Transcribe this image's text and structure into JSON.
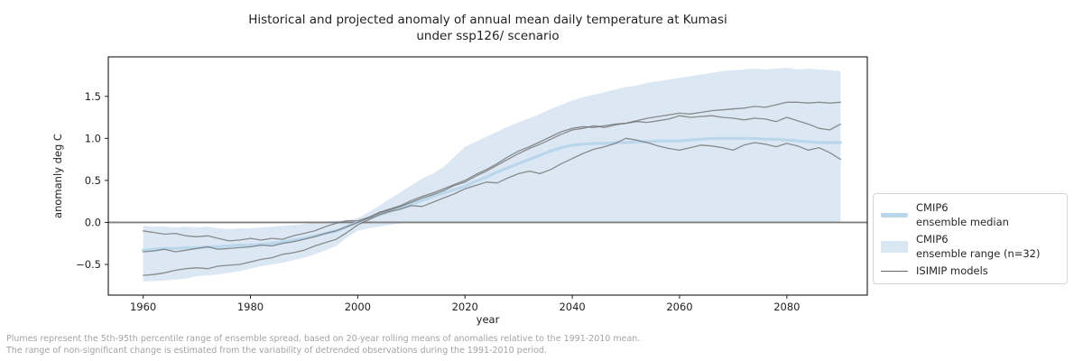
{
  "page": {
    "background": "#ffffff"
  },
  "chart": {
    "title_line1": "Historical and projected anomaly of annual mean daily temperature at Kumasi",
    "title_line2": "under ssp126/ scenario",
    "x_label": "year",
    "y_label": "anomanly deg C",
    "footnote_line1": "Plumes represent the 5th-95th percentile range of ensemble spread, based on 20-year rolling means of anomalies relative to the 1991-2010 mean.",
    "footnote_line2": "The range of non-significant change is estimated from the variability of detrended observations during the 1991-2010 period.",
    "legend": {
      "items": [
        {
          "swatch": "median-line-swatch",
          "line1": "CMIP6",
          "line2": "ensemble median"
        },
        {
          "swatch": "range-fill-swatch",
          "line1": "CMIP6",
          "line2": "ensemble range (n=32)"
        },
        {
          "swatch": "model-line-swatch",
          "line1": "ISIMIP models",
          "line2": ""
        }
      ]
    },
    "colors": {
      "band_fill": "#d9e7f3",
      "median_line": "#b8d5ea",
      "model_line": "#666666",
      "zero_line": "#7f7f7f",
      "frame": "#000000",
      "tick_text": "#1f1f1f",
      "footnote_text": "#a3a3a3",
      "legend_border": "#d4d4d4"
    }
  },
  "chart_data": {
    "type": "line",
    "title": "Historical and projected anomaly of annual mean daily temperature at Kumasi under ssp126/ scenario",
    "xlabel": "year",
    "ylabel": "anomanly deg C",
    "xlim": [
      1953.5,
      2095
    ],
    "ylim": [
      -0.865,
      1.97
    ],
    "x_ticks": [
      1960,
      1980,
      2000,
      2020,
      2040,
      2060,
      2080
    ],
    "y_ticks": [
      1.5,
      1.0,
      0.5,
      0.0,
      -0.5
    ],
    "y_tick_labels": [
      "1.5",
      "1.0",
      "0.5",
      "0.0",
      "−0.5"
    ],
    "grid": false,
    "legend_position": "right-outside",
    "years": [
      1960,
      1962,
      1964,
      1966,
      1968,
      1970,
      1972,
      1974,
      1976,
      1978,
      1980,
      1982,
      1984,
      1986,
      1988,
      1990,
      1992,
      1994,
      1996,
      1998,
      2000,
      2002,
      2004,
      2006,
      2008,
      2010,
      2012,
      2014,
      2016,
      2018,
      2020,
      2022,
      2024,
      2026,
      2028,
      2030,
      2032,
      2034,
      2036,
      2038,
      2040,
      2042,
      2044,
      2046,
      2048,
      2050,
      2052,
      2054,
      2056,
      2058,
      2060,
      2062,
      2064,
      2066,
      2068,
      2070,
      2072,
      2074,
      2076,
      2078,
      2080,
      2082,
      2084,
      2086,
      2088,
      2090
    ],
    "band": {
      "name": "CMIP6 ensemble range (n=32)",
      "color": "#d9e7f3",
      "upper": [
        -0.04,
        -0.05,
        -0.05,
        -0.06,
        -0.05,
        -0.06,
        -0.05,
        -0.07,
        -0.08,
        -0.07,
        -0.07,
        -0.06,
        -0.05,
        -0.04,
        -0.03,
        -0.02,
        0.0,
        0.01,
        0.02,
        0.03,
        0.05,
        0.12,
        0.2,
        0.28,
        0.36,
        0.44,
        0.52,
        0.58,
        0.66,
        0.78,
        0.9,
        0.96,
        1.02,
        1.08,
        1.14,
        1.19,
        1.24,
        1.29,
        1.35,
        1.4,
        1.45,
        1.49,
        1.52,
        1.55,
        1.58,
        1.61,
        1.63,
        1.66,
        1.68,
        1.7,
        1.72,
        1.74,
        1.76,
        1.78,
        1.8,
        1.81,
        1.82,
        1.83,
        1.82,
        1.83,
        1.84,
        1.82,
        1.83,
        1.82,
        1.81,
        1.8
      ],
      "lower": [
        -0.7,
        -0.7,
        -0.69,
        -0.68,
        -0.67,
        -0.64,
        -0.63,
        -0.62,
        -0.6,
        -0.58,
        -0.55,
        -0.52,
        -0.5,
        -0.48,
        -0.45,
        -0.42,
        -0.38,
        -0.33,
        -0.28,
        -0.18,
        -0.1,
        -0.07,
        -0.05,
        -0.03,
        -0.01,
        0.0,
        0.0,
        0.0,
        0.0,
        0.0,
        0.0,
        0.0,
        0.0,
        0.0,
        0.0,
        0.0,
        0.0,
        0.0,
        0.0,
        0.0,
        0.0,
        0.0,
        0.0,
        0.0,
        0.0,
        0.0,
        0.0,
        0.0,
        0.0,
        0.0,
        0.0,
        0.0,
        0.0,
        0.0,
        0.0,
        0.0,
        0.0,
        0.0,
        0.0,
        0.0,
        0.0,
        0.0,
        0.0,
        0.0,
        0.0,
        0.0
      ]
    },
    "series": [
      {
        "name": "CMIP6 ensemble median",
        "style": "thick-lightblue",
        "color": "#b8d5ea",
        "width": 3.2,
        "values": [
          -0.33,
          -0.32,
          -0.31,
          -0.31,
          -0.3,
          -0.3,
          -0.29,
          -0.29,
          -0.28,
          -0.27,
          -0.27,
          -0.26,
          -0.25,
          -0.23,
          -0.21,
          -0.19,
          -0.16,
          -0.13,
          -0.1,
          -0.05,
          0.0,
          0.05,
          0.09,
          0.13,
          0.17,
          0.22,
          0.26,
          0.31,
          0.35,
          0.39,
          0.43,
          0.49,
          0.54,
          0.6,
          0.65,
          0.7,
          0.75,
          0.8,
          0.85,
          0.89,
          0.92,
          0.93,
          0.94,
          0.94,
          0.95,
          0.95,
          0.96,
          0.96,
          0.97,
          0.97,
          0.97,
          0.98,
          0.99,
          1.0,
          1.0,
          1.0,
          1.0,
          1.0,
          0.99,
          0.99,
          0.98,
          0.97,
          0.96,
          0.95,
          0.95,
          0.95
        ]
      },
      {
        "name": "ISIMIP model 1",
        "style": "thin-gray",
        "color": "#666666",
        "width": 1.3,
        "values": [
          -0.1,
          -0.12,
          -0.14,
          -0.13,
          -0.16,
          -0.17,
          -0.16,
          -0.19,
          -0.22,
          -0.21,
          -0.19,
          -0.21,
          -0.19,
          -0.2,
          -0.16,
          -0.13,
          -0.1,
          -0.05,
          -0.01,
          0.02,
          0.02,
          0.06,
          0.12,
          0.16,
          0.2,
          0.26,
          0.31,
          0.35,
          0.4,
          0.45,
          0.5,
          0.57,
          0.63,
          0.7,
          0.78,
          0.85,
          0.9,
          0.96,
          1.02,
          1.08,
          1.12,
          1.14,
          1.13,
          1.15,
          1.17,
          1.18,
          1.21,
          1.24,
          1.26,
          1.28,
          1.3,
          1.29,
          1.31,
          1.33,
          1.34,
          1.35,
          1.36,
          1.38,
          1.37,
          1.4,
          1.43,
          1.43,
          1.42,
          1.43,
          1.42,
          1.43
        ]
      },
      {
        "name": "ISIMIP model 2",
        "style": "thin-gray",
        "color": "#666666",
        "width": 1.3,
        "values": [
          -0.35,
          -0.34,
          -0.32,
          -0.35,
          -0.33,
          -0.31,
          -0.29,
          -0.32,
          -0.31,
          -0.3,
          -0.29,
          -0.27,
          -0.28,
          -0.25,
          -0.23,
          -0.2,
          -0.17,
          -0.13,
          -0.1,
          -0.05,
          0.0,
          0.05,
          0.11,
          0.15,
          0.19,
          0.24,
          0.29,
          0.33,
          0.38,
          0.44,
          0.48,
          0.55,
          0.61,
          0.68,
          0.75,
          0.82,
          0.88,
          0.93,
          0.99,
          1.05,
          1.1,
          1.12,
          1.15,
          1.13,
          1.16,
          1.18,
          1.2,
          1.19,
          1.21,
          1.23,
          1.27,
          1.25,
          1.26,
          1.27,
          1.25,
          1.24,
          1.22,
          1.24,
          1.23,
          1.2,
          1.25,
          1.21,
          1.17,
          1.12,
          1.1,
          1.17
        ]
      },
      {
        "name": "ISIMIP model 3",
        "style": "thin-gray",
        "color": "#666666",
        "width": 1.3,
        "values": [
          -0.63,
          -0.62,
          -0.6,
          -0.57,
          -0.55,
          -0.54,
          -0.55,
          -0.52,
          -0.51,
          -0.5,
          -0.47,
          -0.44,
          -0.42,
          -0.38,
          -0.36,
          -0.33,
          -0.28,
          -0.24,
          -0.2,
          -0.12,
          -0.03,
          0.03,
          0.09,
          0.13,
          0.16,
          0.2,
          0.19,
          0.24,
          0.29,
          0.34,
          0.4,
          0.44,
          0.48,
          0.47,
          0.53,
          0.58,
          0.61,
          0.58,
          0.63,
          0.7,
          0.76,
          0.82,
          0.87,
          0.9,
          0.94,
          1.0,
          0.98,
          0.95,
          0.91,
          0.88,
          0.86,
          0.89,
          0.92,
          0.91,
          0.89,
          0.86,
          0.92,
          0.95,
          0.93,
          0.9,
          0.94,
          0.91,
          0.86,
          0.89,
          0.83,
          0.75
        ]
      }
    ],
    "zero_line": {
      "y": 0.0,
      "color": "#7f7f7f",
      "width": 1.8
    }
  }
}
